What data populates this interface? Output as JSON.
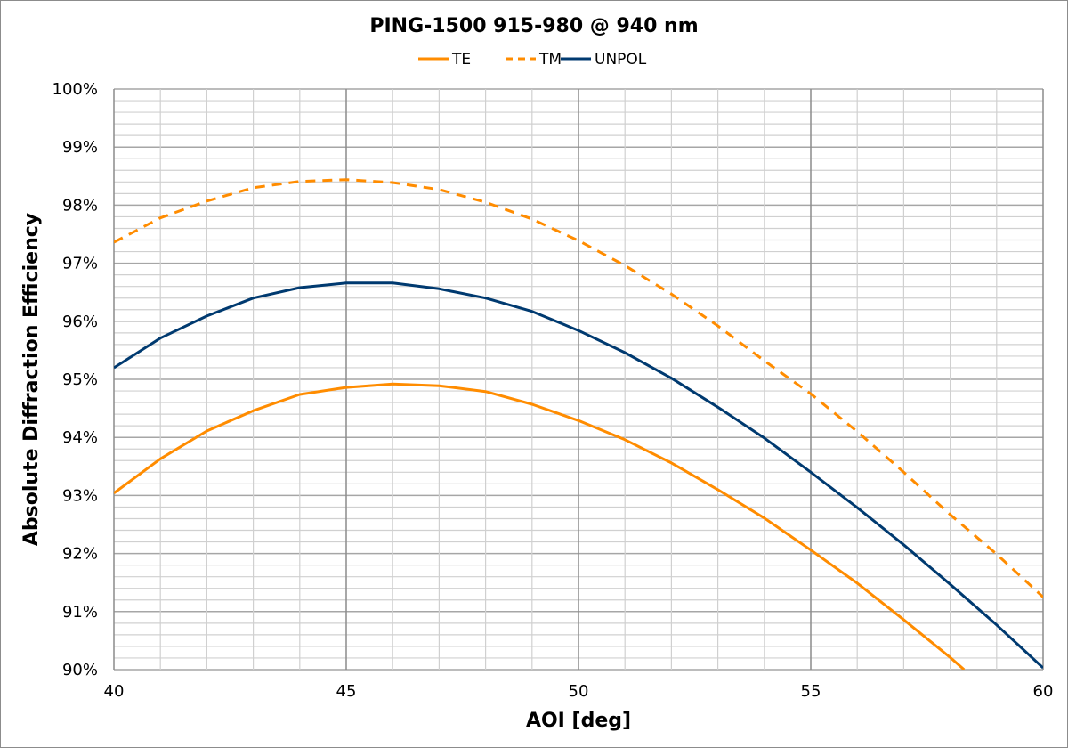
{
  "chart_data": {
    "type": "line",
    "title": "PING-1500 915-980 @ 940 nm",
    "xlabel": "AOI [deg]",
    "ylabel": "Absolute Diffraction Efficiency",
    "xlim": [
      40,
      60
    ],
    "ylim": [
      90,
      100
    ],
    "xticks": [
      "40",
      "45",
      "50",
      "55",
      "60"
    ],
    "yticks": [
      "90%",
      "91%",
      "92%",
      "93%",
      "94%",
      "95%",
      "96%",
      "97%",
      "98%",
      "99%",
      "100%"
    ],
    "grid": true,
    "legend_position": "top",
    "series": [
      {
        "name": "TE",
        "color": "#FF8C00",
        "dash": false,
        "x": [
          40,
          41,
          42,
          43,
          44,
          45,
          46,
          47,
          48,
          49,
          50,
          51,
          52,
          53,
          54,
          55,
          56,
          57,
          58,
          58.3
        ],
        "values": [
          93.04,
          93.63,
          94.11,
          94.46,
          94.74,
          94.86,
          94.92,
          94.89,
          94.79,
          94.57,
          94.29,
          93.96,
          93.56,
          93.1,
          92.61,
          92.06,
          91.49,
          90.86,
          90.21,
          90.0
        ]
      },
      {
        "name": "TM",
        "color": "#FF8C00",
        "dash": true,
        "x": [
          40,
          41,
          42,
          43,
          44,
          45,
          46,
          47,
          48,
          49,
          50,
          51,
          52,
          53,
          54,
          55,
          56,
          57,
          58,
          59,
          60
        ],
        "values": [
          97.36,
          97.78,
          98.07,
          98.3,
          98.41,
          98.44,
          98.39,
          98.27,
          98.05,
          97.76,
          97.39,
          96.96,
          96.47,
          95.92,
          95.32,
          94.75,
          94.1,
          93.4,
          92.67,
          91.99,
          91.25
        ]
      },
      {
        "name": "UNPOL",
        "color": "#003A70",
        "dash": false,
        "x": [
          40,
          41,
          42,
          43,
          44,
          45,
          46,
          47,
          48,
          49,
          50,
          51,
          52,
          53,
          54,
          55,
          56,
          57,
          58,
          59,
          60
        ],
        "values": [
          95.2,
          95.71,
          96.09,
          96.4,
          96.58,
          96.66,
          96.66,
          96.56,
          96.4,
          96.17,
          95.84,
          95.46,
          95.02,
          94.52,
          93.99,
          93.4,
          92.79,
          92.15,
          91.47,
          90.77,
          90.03
        ]
      }
    ]
  }
}
